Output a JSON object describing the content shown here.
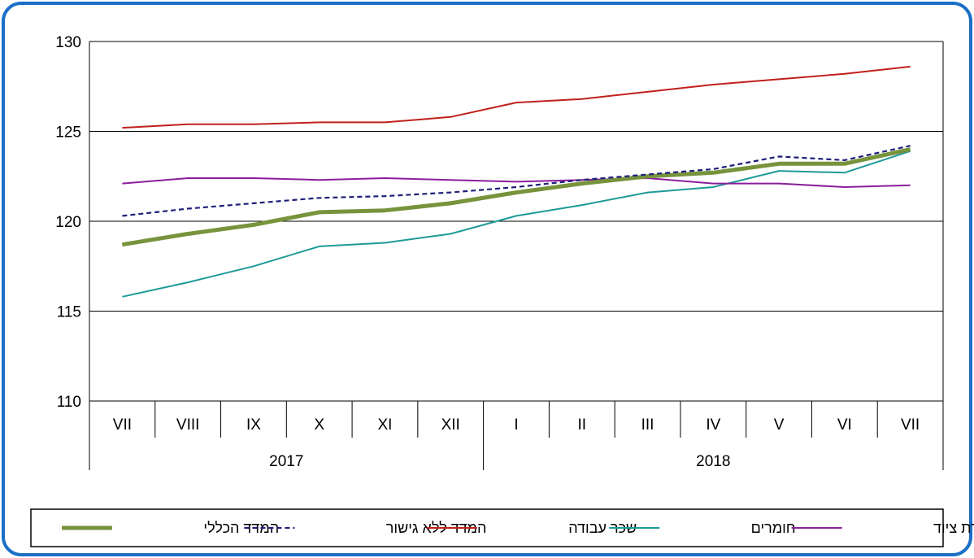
{
  "chart_data": {
    "type": "line",
    "title": "",
    "xlabel": "",
    "ylabel": "",
    "ylim": [
      110,
      130
    ],
    "yticks": [
      "110",
      "115",
      "120",
      "125",
      "130"
    ],
    "grid": true,
    "x": [
      "VII",
      "VIII",
      "IX",
      "X",
      "XI",
      "XII",
      "I",
      "II",
      "III",
      "IV",
      "V",
      "VI",
      "VII"
    ],
    "year_groups": [
      {
        "label": "2017",
        "count": 6
      },
      {
        "label": "2018",
        "count": 7
      }
    ],
    "legend_position": "bottom",
    "series": [
      {
        "name": "המדד הכללי",
        "color": "#77933c",
        "style": "thick",
        "values": [
          118.7,
          119.3,
          119.8,
          120.5,
          120.6,
          121.0,
          121.6,
          122.1,
          122.5,
          122.7,
          123.2,
          123.2,
          124.0
        ]
      },
      {
        "name": "המדד ללא גישור",
        "color": "#1f1f7a",
        "style": "dashed",
        "values": [
          120.3,
          120.7,
          121.0,
          121.3,
          121.4,
          121.6,
          121.9,
          122.3,
          122.6,
          122.9,
          123.6,
          123.4,
          124.2
        ]
      },
      {
        "name": "שכר עבודה",
        "color": "#c0201c",
        "style": "solid",
        "values": [
          125.2,
          125.4,
          125.4,
          125.5,
          125.5,
          125.8,
          126.6,
          126.8,
          127.2,
          127.6,
          127.9,
          128.2,
          128.6
        ]
      },
      {
        "name": "חומרים",
        "color": "#1d9a97",
        "style": "solid",
        "values": [
          115.8,
          116.6,
          117.5,
          118.6,
          118.8,
          119.3,
          120.3,
          120.9,
          121.6,
          121.9,
          122.8,
          122.7,
          123.9
        ]
      },
      {
        "name": "שכירת ציוד",
        "color": "#8b1e9c",
        "style": "solid",
        "values": [
          122.1,
          122.4,
          122.4,
          122.3,
          122.4,
          122.3,
          122.2,
          122.3,
          122.4,
          122.1,
          122.1,
          121.9,
          122.0
        ]
      }
    ]
  }
}
